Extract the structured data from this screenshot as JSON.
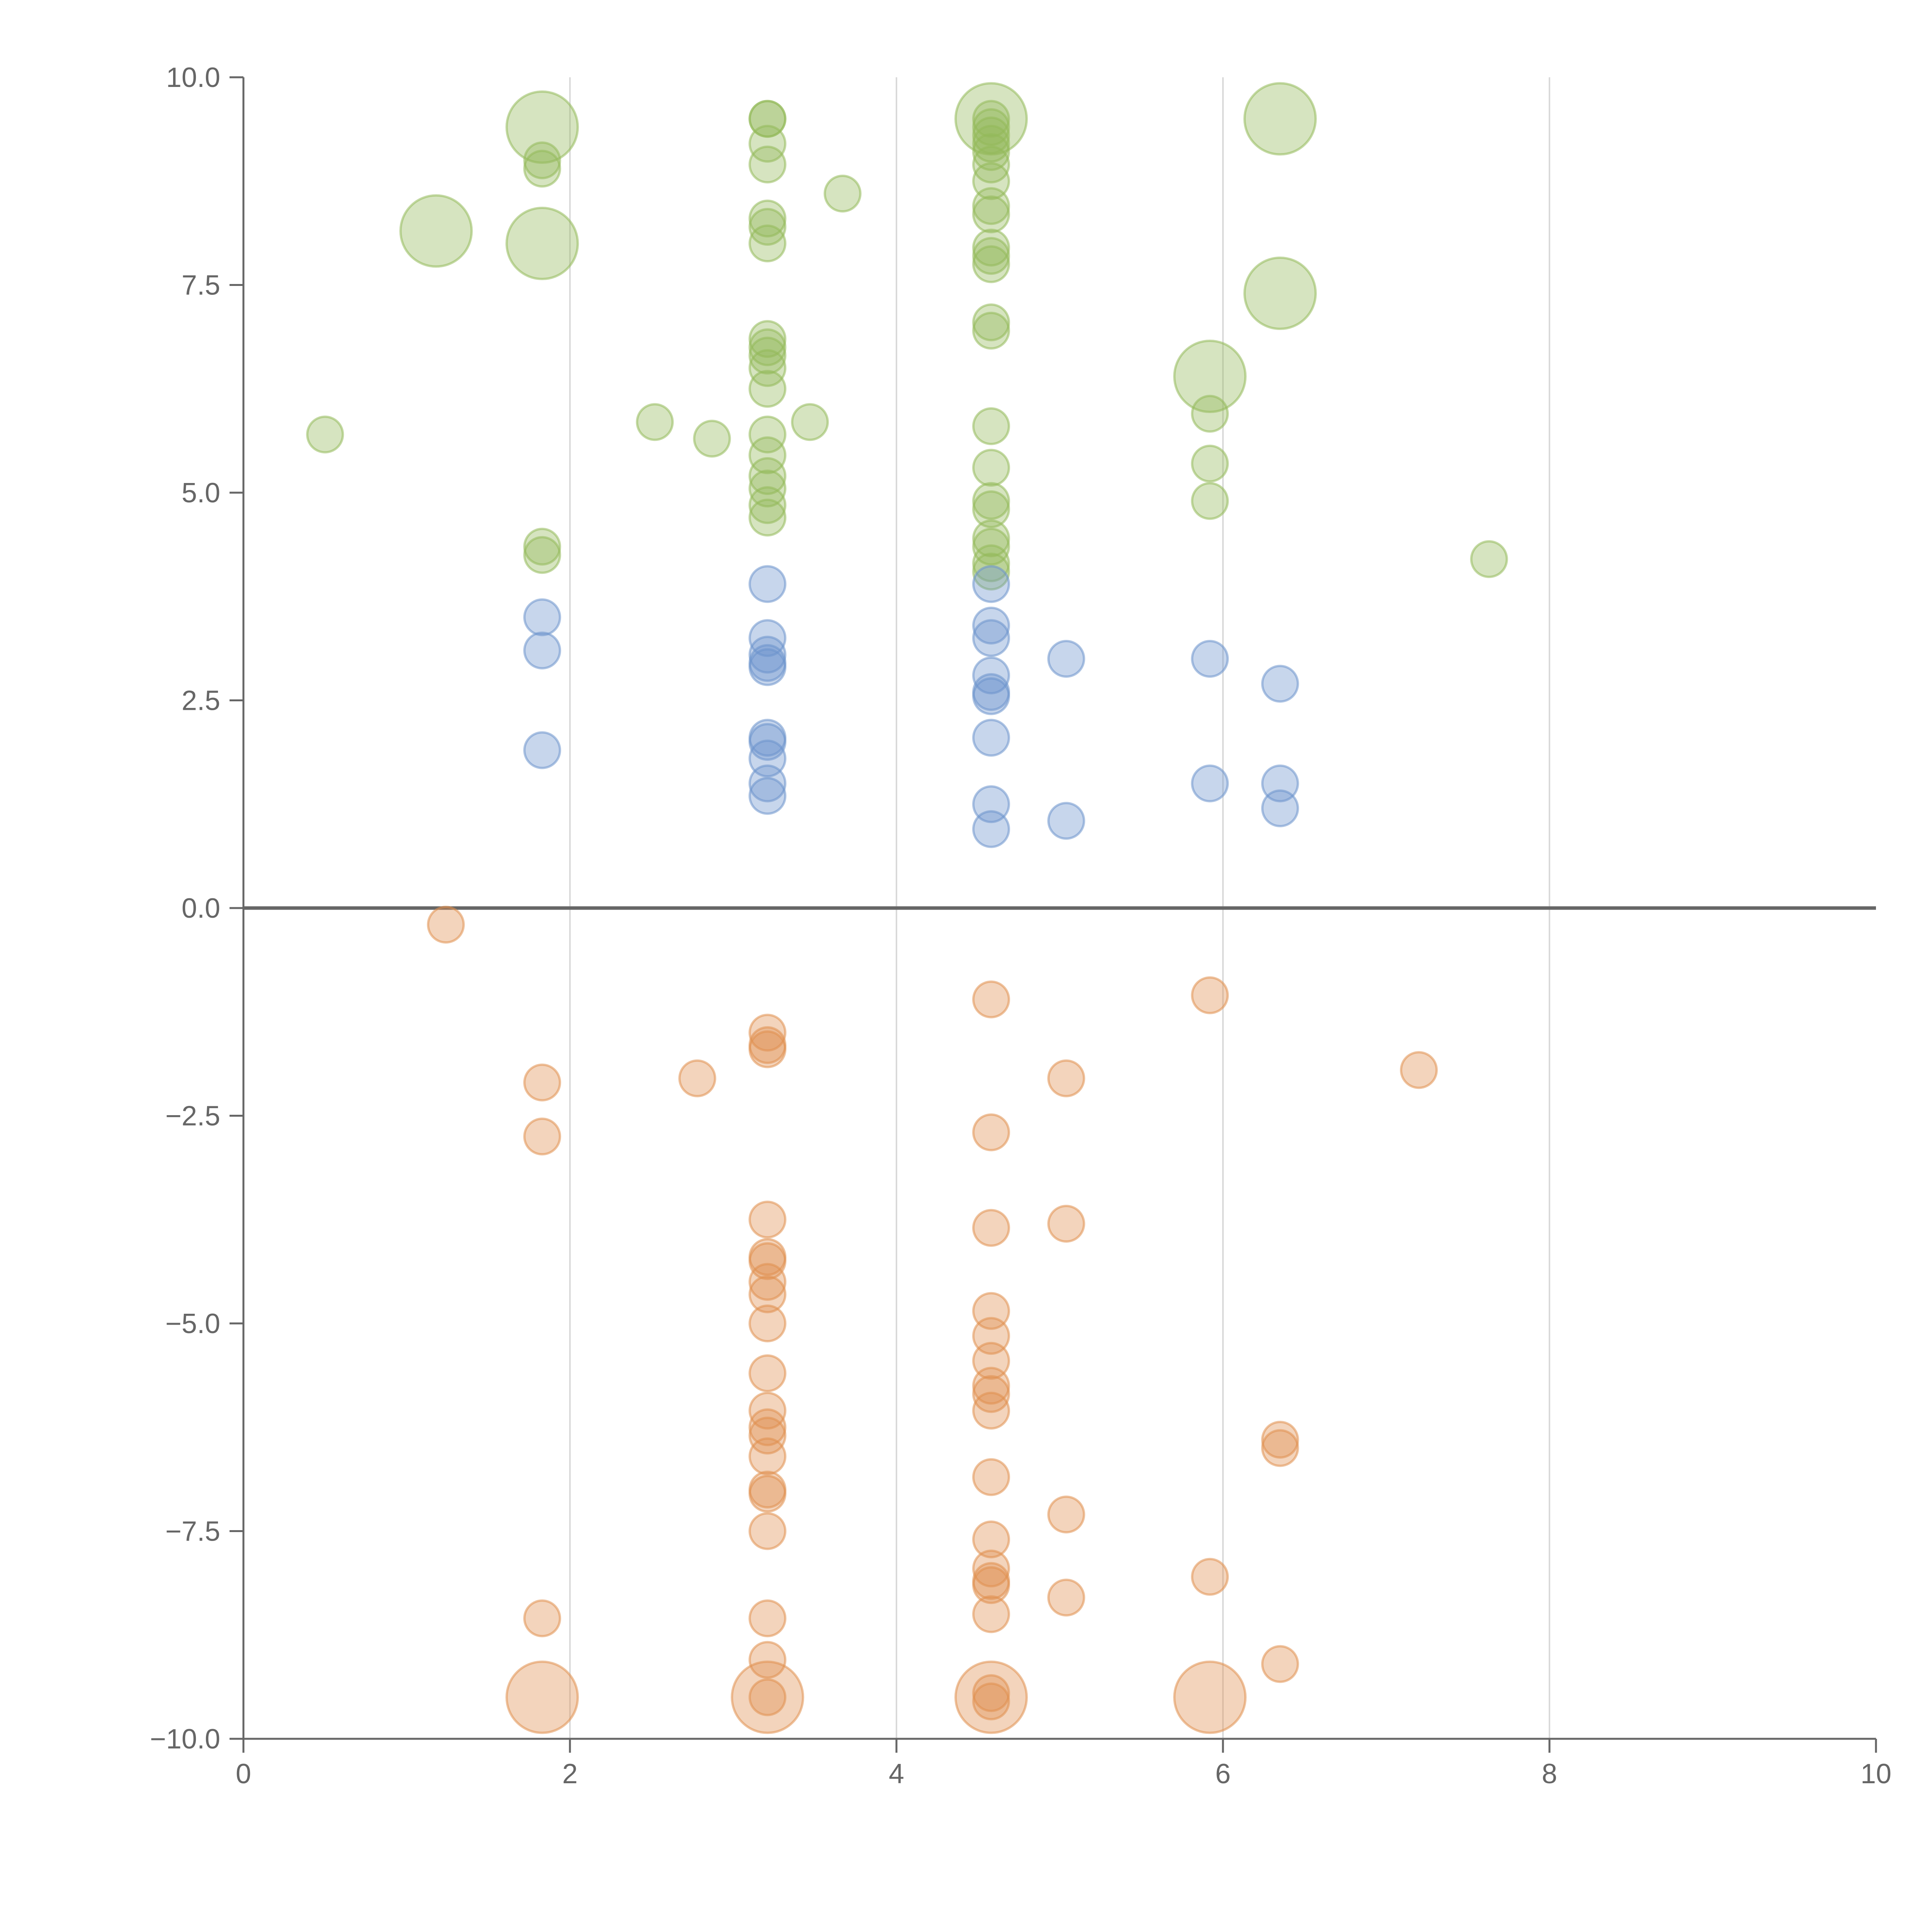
{
  "chart_data": {
    "type": "scatter",
    "title": "",
    "xlabel": "",
    "ylabel": "",
    "xlim": [
      0,
      10
    ],
    "ylim": [
      -10,
      10
    ],
    "grid": {
      "x": true,
      "y": false
    },
    "x_ticks": [
      "0",
      "2",
      "4",
      "6",
      "8",
      "10"
    ],
    "x_tick_values": [
      0,
      2,
      4,
      6,
      8,
      10
    ],
    "y_ticks": [
      "10.0",
      "7.5",
      "5.0",
      "2.5",
      "0.0",
      "−2.5",
      "−5.0",
      "−7.5",
      "−10.0"
    ],
    "y_tick_values": [
      10,
      7.5,
      5,
      2.5,
      0,
      -2.5,
      -5,
      -7.5,
      -10
    ],
    "colors": {
      "green": "#93b95a",
      "blue": "#6b93cc",
      "orange": "#e08f4e"
    },
    "series": [
      {
        "name": "green",
        "color": "#93b95a",
        "points": [
          {
            "x": 0.5,
            "y": 5.7,
            "size": 1
          },
          {
            "x": 1.18,
            "y": 8.15,
            "size": 3
          },
          {
            "x": 1.83,
            "y": 9.4,
            "size": 3
          },
          {
            "x": 1.83,
            "y": 8.0,
            "size": 3
          },
          {
            "x": 1.83,
            "y": 9.0,
            "size": 1
          },
          {
            "x": 1.83,
            "y": 8.9,
            "size": 1
          },
          {
            "x": 1.83,
            "y": 4.35,
            "size": 1
          },
          {
            "x": 1.83,
            "y": 4.25,
            "size": 1
          },
          {
            "x": 2.52,
            "y": 5.85,
            "size": 1
          },
          {
            "x": 2.87,
            "y": 5.65,
            "size": 1
          },
          {
            "x": 3.21,
            "y": 9.5,
            "size": 1
          },
          {
            "x": 3.21,
            "y": 9.5,
            "size": 1
          },
          {
            "x": 3.21,
            "y": 9.2,
            "size": 1
          },
          {
            "x": 3.21,
            "y": 8.95,
            "size": 1
          },
          {
            "x": 3.21,
            "y": 8.3,
            "size": 1
          },
          {
            "x": 3.21,
            "y": 8.2,
            "size": 1
          },
          {
            "x": 3.21,
            "y": 8.0,
            "size": 1
          },
          {
            "x": 3.21,
            "y": 6.85,
            "size": 1
          },
          {
            "x": 3.21,
            "y": 6.75,
            "size": 1
          },
          {
            "x": 3.21,
            "y": 6.65,
            "size": 1
          },
          {
            "x": 3.21,
            "y": 6.5,
            "size": 1
          },
          {
            "x": 3.21,
            "y": 6.25,
            "size": 1
          },
          {
            "x": 3.21,
            "y": 5.7,
            "size": 1
          },
          {
            "x": 3.21,
            "y": 5.45,
            "size": 1
          },
          {
            "x": 3.21,
            "y": 5.2,
            "size": 1
          },
          {
            "x": 3.21,
            "y": 5.05,
            "size": 1
          },
          {
            "x": 3.21,
            "y": 4.85,
            "size": 1
          },
          {
            "x": 3.21,
            "y": 4.7,
            "size": 1
          },
          {
            "x": 3.47,
            "y": 5.85,
            "size": 1
          },
          {
            "x": 3.67,
            "y": 8.6,
            "size": 1
          },
          {
            "x": 4.58,
            "y": 9.5,
            "size": 3
          },
          {
            "x": 4.58,
            "y": 9.5,
            "size": 1
          },
          {
            "x": 4.58,
            "y": 9.4,
            "size": 1
          },
          {
            "x": 4.58,
            "y": 9.3,
            "size": 1
          },
          {
            "x": 4.58,
            "y": 9.2,
            "size": 1
          },
          {
            "x": 4.58,
            "y": 9.1,
            "size": 1
          },
          {
            "x": 4.58,
            "y": 8.95,
            "size": 1
          },
          {
            "x": 4.58,
            "y": 8.75,
            "size": 1
          },
          {
            "x": 4.58,
            "y": 8.45,
            "size": 1
          },
          {
            "x": 4.58,
            "y": 8.35,
            "size": 1
          },
          {
            "x": 4.58,
            "y": 7.95,
            "size": 1
          },
          {
            "x": 4.58,
            "y": 7.85,
            "size": 1
          },
          {
            "x": 4.58,
            "y": 7.75,
            "size": 1
          },
          {
            "x": 4.58,
            "y": 7.05,
            "size": 1
          },
          {
            "x": 4.58,
            "y": 6.95,
            "size": 1
          },
          {
            "x": 4.58,
            "y": 5.8,
            "size": 1
          },
          {
            "x": 4.58,
            "y": 5.3,
            "size": 1
          },
          {
            "x": 4.58,
            "y": 4.9,
            "size": 1
          },
          {
            "x": 4.58,
            "y": 4.8,
            "size": 1
          },
          {
            "x": 4.58,
            "y": 4.45,
            "size": 1
          },
          {
            "x": 4.58,
            "y": 4.35,
            "size": 1
          },
          {
            "x": 4.58,
            "y": 4.15,
            "size": 1
          },
          {
            "x": 4.58,
            "y": 4.05,
            "size": 1
          },
          {
            "x": 5.92,
            "y": 6.4,
            "size": 3
          },
          {
            "x": 5.92,
            "y": 5.95,
            "size": 1
          },
          {
            "x": 5.92,
            "y": 5.35,
            "size": 1
          },
          {
            "x": 5.92,
            "y": 4.9,
            "size": 1
          },
          {
            "x": 6.35,
            "y": 9.5,
            "size": 3
          },
          {
            "x": 6.35,
            "y": 7.4,
            "size": 3
          },
          {
            "x": 7.63,
            "y": 4.2,
            "size": 1
          }
        ]
      },
      {
        "name": "blue",
        "color": "#6b93cc",
        "points": [
          {
            "x": 1.83,
            "y": 3.5,
            "size": 1
          },
          {
            "x": 1.83,
            "y": 3.1,
            "size": 1
          },
          {
            "x": 1.83,
            "y": 1.9,
            "size": 1
          },
          {
            "x": 3.21,
            "y": 3.9,
            "size": 1
          },
          {
            "x": 3.21,
            "y": 3.25,
            "size": 1
          },
          {
            "x": 3.21,
            "y": 3.05,
            "size": 1
          },
          {
            "x": 3.21,
            "y": 2.95,
            "size": 1
          },
          {
            "x": 3.21,
            "y": 2.9,
            "size": 1
          },
          {
            "x": 3.21,
            "y": 2.05,
            "size": 1
          },
          {
            "x": 3.21,
            "y": 2.0,
            "size": 1
          },
          {
            "x": 3.21,
            "y": 1.8,
            "size": 1
          },
          {
            "x": 3.21,
            "y": 1.5,
            "size": 1
          },
          {
            "x": 3.21,
            "y": 1.35,
            "size": 1
          },
          {
            "x": 4.58,
            "y": 3.9,
            "size": 1
          },
          {
            "x": 4.58,
            "y": 3.4,
            "size": 1
          },
          {
            "x": 4.58,
            "y": 3.25,
            "size": 1
          },
          {
            "x": 4.58,
            "y": 2.8,
            "size": 1
          },
          {
            "x": 4.58,
            "y": 2.6,
            "size": 1
          },
          {
            "x": 4.58,
            "y": 2.55,
            "size": 1
          },
          {
            "x": 4.58,
            "y": 2.05,
            "size": 1
          },
          {
            "x": 4.58,
            "y": 1.25,
            "size": 1
          },
          {
            "x": 4.58,
            "y": 0.95,
            "size": 1
          },
          {
            "x": 5.04,
            "y": 3.0,
            "size": 1
          },
          {
            "x": 5.04,
            "y": 1.05,
            "size": 1
          },
          {
            "x": 5.92,
            "y": 3.0,
            "size": 1
          },
          {
            "x": 5.92,
            "y": 1.5,
            "size": 1
          },
          {
            "x": 6.35,
            "y": 2.7,
            "size": 1
          },
          {
            "x": 6.35,
            "y": 1.5,
            "size": 1
          },
          {
            "x": 6.35,
            "y": 1.2,
            "size": 1
          }
        ]
      },
      {
        "name": "orange",
        "color": "#e08f4e",
        "points": [
          {
            "x": 1.24,
            "y": -0.2,
            "size": 1
          },
          {
            "x": 1.83,
            "y": -2.1,
            "size": 1
          },
          {
            "x": 1.83,
            "y": -2.75,
            "size": 1
          },
          {
            "x": 1.83,
            "y": -8.55,
            "size": 1
          },
          {
            "x": 1.83,
            "y": -9.5,
            "size": 3
          },
          {
            "x": 2.78,
            "y": -2.05,
            "size": 1
          },
          {
            "x": 3.21,
            "y": -1.5,
            "size": 1
          },
          {
            "x": 3.21,
            "y": -1.65,
            "size": 1
          },
          {
            "x": 3.21,
            "y": -1.7,
            "size": 1
          },
          {
            "x": 3.21,
            "y": -3.75,
            "size": 1
          },
          {
            "x": 3.21,
            "y": -4.2,
            "size": 1
          },
          {
            "x": 3.21,
            "y": -4.25,
            "size": 1
          },
          {
            "x": 3.21,
            "y": -4.5,
            "size": 1
          },
          {
            "x": 3.21,
            "y": -4.65,
            "size": 1
          },
          {
            "x": 3.21,
            "y": -5.0,
            "size": 1
          },
          {
            "x": 3.21,
            "y": -5.6,
            "size": 1
          },
          {
            "x": 3.21,
            "y": -6.05,
            "size": 1
          },
          {
            "x": 3.21,
            "y": -6.25,
            "size": 1
          },
          {
            "x": 3.21,
            "y": -6.35,
            "size": 1
          },
          {
            "x": 3.21,
            "y": -6.6,
            "size": 1
          },
          {
            "x": 3.21,
            "y": -7.0,
            "size": 1
          },
          {
            "x": 3.21,
            "y": -7.05,
            "size": 1
          },
          {
            "x": 3.21,
            "y": -7.5,
            "size": 1
          },
          {
            "x": 3.21,
            "y": -8.55,
            "size": 1
          },
          {
            "x": 3.21,
            "y": -9.05,
            "size": 1
          },
          {
            "x": 3.21,
            "y": -9.5,
            "size": 3
          },
          {
            "x": 3.21,
            "y": -9.5,
            "size": 1
          },
          {
            "x": 4.58,
            "y": -1.1,
            "size": 1
          },
          {
            "x": 4.58,
            "y": -2.7,
            "size": 1
          },
          {
            "x": 4.58,
            "y": -3.85,
            "size": 1
          },
          {
            "x": 4.58,
            "y": -4.85,
            "size": 1
          },
          {
            "x": 4.58,
            "y": -5.15,
            "size": 1
          },
          {
            "x": 4.58,
            "y": -5.45,
            "size": 1
          },
          {
            "x": 4.58,
            "y": -5.75,
            "size": 1
          },
          {
            "x": 4.58,
            "y": -5.85,
            "size": 1
          },
          {
            "x": 4.58,
            "y": -6.05,
            "size": 1
          },
          {
            "x": 4.58,
            "y": -6.85,
            "size": 1
          },
          {
            "x": 4.58,
            "y": -7.6,
            "size": 1
          },
          {
            "x": 4.58,
            "y": -7.95,
            "size": 1
          },
          {
            "x": 4.58,
            "y": -8.1,
            "size": 1
          },
          {
            "x": 4.58,
            "y": -8.15,
            "size": 1
          },
          {
            "x": 4.58,
            "y": -8.5,
            "size": 1
          },
          {
            "x": 4.58,
            "y": -9.5,
            "size": 3
          },
          {
            "x": 4.58,
            "y": -9.45,
            "size": 1
          },
          {
            "x": 4.58,
            "y": -9.55,
            "size": 1
          },
          {
            "x": 5.04,
            "y": -2.05,
            "size": 1
          },
          {
            "x": 5.04,
            "y": -3.8,
            "size": 1
          },
          {
            "x": 5.04,
            "y": -7.3,
            "size": 1
          },
          {
            "x": 5.04,
            "y": -8.3,
            "size": 1
          },
          {
            "x": 5.92,
            "y": -1.05,
            "size": 1
          },
          {
            "x": 5.92,
            "y": -8.05,
            "size": 1
          },
          {
            "x": 5.92,
            "y": -9.5,
            "size": 3
          },
          {
            "x": 6.35,
            "y": -6.4,
            "size": 1
          },
          {
            "x": 6.35,
            "y": -6.5,
            "size": 1
          },
          {
            "x": 6.35,
            "y": -9.1,
            "size": 1
          },
          {
            "x": 7.2,
            "y": -1.95,
            "size": 1
          }
        ]
      }
    ]
  }
}
